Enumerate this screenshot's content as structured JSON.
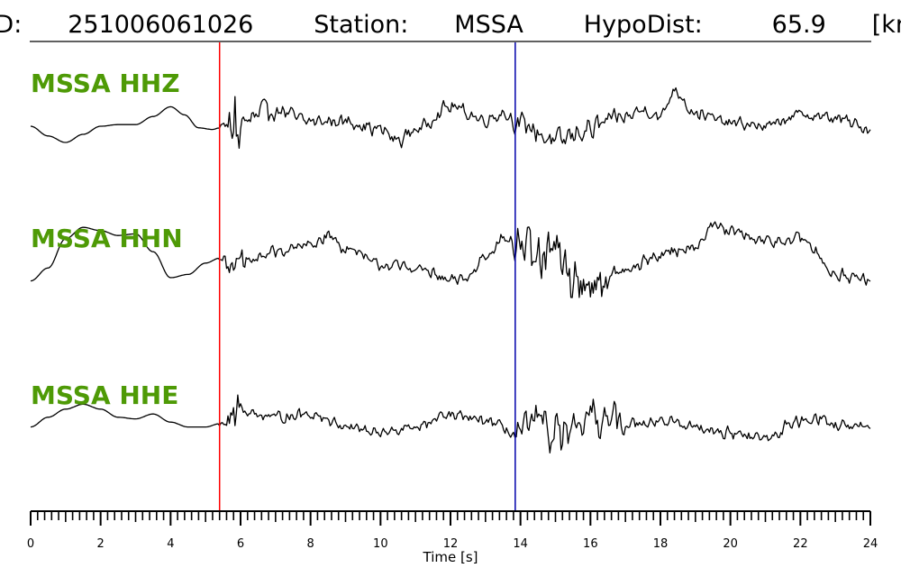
{
  "header": {
    "id_label": "ID:",
    "id_value": "251006061026",
    "station_label": "Station:",
    "station_value": "MSSA",
    "hypodist_label": "HypoDist:",
    "hypodist_value": "65.9",
    "hypodist_unit": "[km]"
  },
  "chart_data": {
    "type": "line",
    "xlabel": "Time [s]",
    "xlim": [
      0,
      24
    ],
    "x_major_ticks": [
      0,
      2,
      4,
      6,
      8,
      10,
      12,
      14,
      16,
      18,
      20,
      22,
      24
    ],
    "x_minor_step": 0.2,
    "markers": [
      {
        "x": 5.4,
        "color": "#ff0000"
      },
      {
        "x": 13.85,
        "color": "#0000aa"
      }
    ],
    "series": [
      {
        "name": "MSSA HHZ",
        "samples_per_second": 25,
        "points": [
          [
            0,
            0.0
          ],
          [
            0.5,
            -0.3
          ],
          [
            1.0,
            -0.5
          ],
          [
            1.5,
            -0.25
          ],
          [
            2.0,
            0.0
          ],
          [
            2.5,
            0.05
          ],
          [
            3.0,
            0.05
          ],
          [
            3.5,
            0.3
          ],
          [
            4.0,
            0.6
          ],
          [
            4.4,
            0.35
          ],
          [
            4.8,
            -0.05
          ],
          [
            5.2,
            -0.1
          ],
          [
            5.4,
            -0.05
          ],
          [
            6.0,
            0.1
          ],
          [
            7.0,
            0.5
          ],
          [
            8.0,
            0.15
          ],
          [
            9.0,
            0.15
          ],
          [
            10.0,
            -0.1
          ],
          [
            10.5,
            -0.45
          ],
          [
            11.0,
            -0.1
          ],
          [
            12.0,
            0.6
          ],
          [
            13.0,
            0.2
          ],
          [
            13.5,
            0.4
          ],
          [
            14.0,
            0.05
          ],
          [
            15.0,
            -0.45
          ],
          [
            16.0,
            -0.1
          ],
          [
            16.5,
            0.15
          ],
          [
            17.0,
            0.3
          ],
          [
            17.5,
            0.5
          ],
          [
            18.0,
            0.3
          ],
          [
            18.4,
            1.1
          ],
          [
            19.0,
            0.4
          ],
          [
            20.0,
            0.1
          ],
          [
            21.0,
            0.0
          ],
          [
            22.0,
            0.35
          ],
          [
            23.0,
            0.25
          ],
          [
            24.0,
            -0.1
          ]
        ],
        "bursts": [
          {
            "x0": 5.4,
            "x1": 5.65,
            "amp": 0.2
          },
          {
            "x0": 5.65,
            "x1": 6.0,
            "amp": 1.6
          },
          {
            "x0": 6.0,
            "x1": 7.0,
            "amp": 0.5
          },
          {
            "x0": 7.0,
            "x1": 13.8,
            "amp": 0.25
          },
          {
            "x0": 13.8,
            "x1": 17.0,
            "amp": 0.4
          },
          {
            "x0": 17.0,
            "x1": 24.0,
            "amp": 0.22
          }
        ]
      },
      {
        "name": "MSSA HHN",
        "samples_per_second": 25,
        "points": [
          [
            0,
            -0.6
          ],
          [
            0.5,
            -0.2
          ],
          [
            1.0,
            0.7
          ],
          [
            1.5,
            1.05
          ],
          [
            2.0,
            0.95
          ],
          [
            2.5,
            0.8
          ],
          [
            3.0,
            0.85
          ],
          [
            3.5,
            0.3
          ],
          [
            4.0,
            -0.5
          ],
          [
            4.5,
            -0.4
          ],
          [
            5.0,
            -0.05
          ],
          [
            5.4,
            0.1
          ],
          [
            6.0,
            -0.1
          ],
          [
            7.0,
            0.3
          ],
          [
            8.0,
            0.5
          ],
          [
            8.5,
            0.8
          ],
          [
            9.0,
            0.4
          ],
          [
            10.0,
            -0.1
          ],
          [
            11.0,
            -0.2
          ],
          [
            12.0,
            -0.6
          ],
          [
            12.5,
            -0.5
          ],
          [
            13.0,
            0.2
          ],
          [
            13.5,
            0.7
          ],
          [
            13.85,
            0.6
          ],
          [
            14.5,
            0.0
          ],
          [
            15.0,
            0.3
          ],
          [
            15.5,
            -0.6
          ],
          [
            16.0,
            -0.7
          ],
          [
            17.0,
            -0.3
          ],
          [
            18.0,
            0.2
          ],
          [
            19.0,
            0.5
          ],
          [
            19.5,
            1.1
          ],
          [
            20.0,
            0.9
          ],
          [
            21.0,
            0.6
          ],
          [
            22.0,
            0.7
          ],
          [
            23.0,
            -0.35
          ],
          [
            23.5,
            -0.5
          ],
          [
            24.0,
            -0.6
          ]
        ],
        "bursts": [
          {
            "x0": 5.4,
            "x1": 5.6,
            "amp": 0.15
          },
          {
            "x0": 5.6,
            "x1": 6.2,
            "amp": 0.5
          },
          {
            "x0": 6.2,
            "x1": 13.8,
            "amp": 0.22
          },
          {
            "x0": 13.8,
            "x1": 16.5,
            "amp": 0.85
          },
          {
            "x0": 16.5,
            "x1": 24.0,
            "amp": 0.25
          }
        ]
      },
      {
        "name": "MSSA HHE",
        "samples_per_second": 25,
        "points": [
          [
            0,
            -0.1
          ],
          [
            0.5,
            0.2
          ],
          [
            1.0,
            0.45
          ],
          [
            1.5,
            0.6
          ],
          [
            2.0,
            0.45
          ],
          [
            2.5,
            0.2
          ],
          [
            3.0,
            0.15
          ],
          [
            3.5,
            0.3
          ],
          [
            4.0,
            0.05
          ],
          [
            4.5,
            -0.1
          ],
          [
            5.0,
            -0.1
          ],
          [
            5.4,
            0.0
          ],
          [
            6.0,
            0.4
          ],
          [
            7.0,
            0.2
          ],
          [
            8.0,
            0.3
          ],
          [
            9.0,
            -0.05
          ],
          [
            10.0,
            -0.3
          ],
          [
            11.0,
            -0.1
          ],
          [
            12.0,
            0.25
          ],
          [
            13.0,
            0.1
          ],
          [
            13.85,
            -0.3
          ],
          [
            14.5,
            0.0
          ],
          [
            15.0,
            -0.3
          ],
          [
            15.5,
            -0.4
          ],
          [
            16.0,
            0.2
          ],
          [
            17.0,
            0.0
          ],
          [
            18.0,
            0.1
          ],
          [
            19.0,
            -0.1
          ],
          [
            20.0,
            -0.3
          ],
          [
            21.0,
            -0.45
          ],
          [
            22.0,
            0.1
          ],
          [
            22.5,
            0.2
          ],
          [
            23.0,
            -0.05
          ],
          [
            24.0,
            -0.15
          ]
        ],
        "bursts": [
          {
            "x0": 5.4,
            "x1": 5.6,
            "amp": 0.15
          },
          {
            "x0": 5.6,
            "x1": 6.1,
            "amp": 0.75
          },
          {
            "x0": 6.1,
            "x1": 13.8,
            "amp": 0.2
          },
          {
            "x0": 13.8,
            "x1": 17.0,
            "amp": 0.75
          },
          {
            "x0": 17.0,
            "x1": 24.0,
            "amp": 0.22
          }
        ]
      }
    ]
  }
}
